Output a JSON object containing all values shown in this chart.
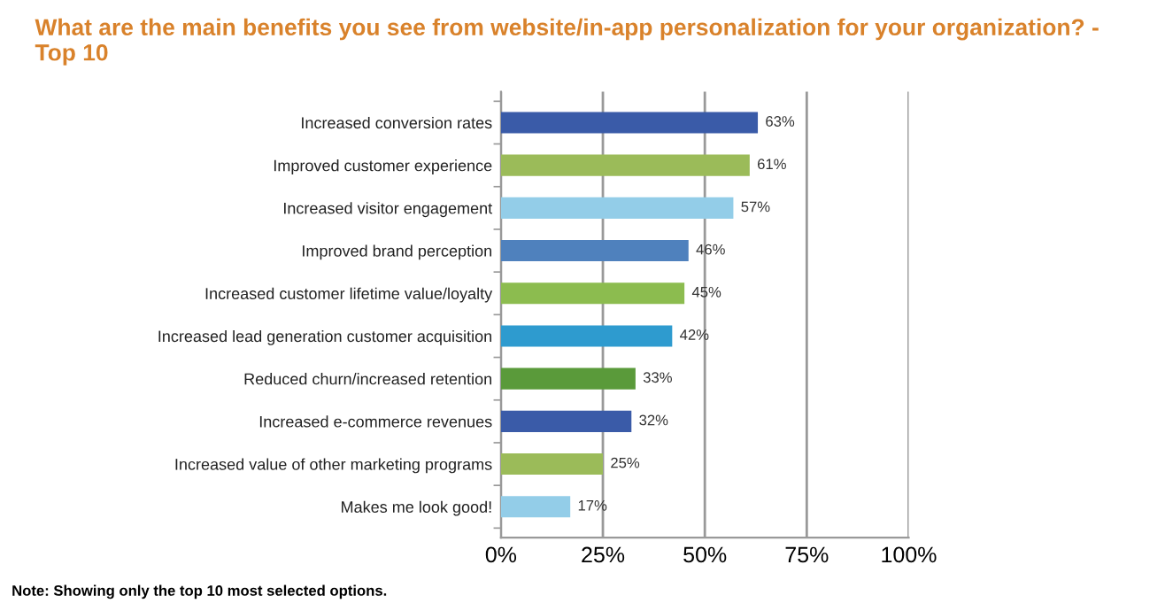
{
  "chart_data": {
    "type": "bar",
    "orientation": "horizontal",
    "title": "What are the main benefits you see from website/in-app personalization for your organization? -\nTop 10",
    "categories": [
      "Increased conversion rates",
      "Improved customer experience",
      "Increased visitor engagement",
      "Improved brand perception",
      "Increased customer lifetime value/loyalty",
      "Increased lead generation customer acquisition",
      "Reduced churn/increased retention",
      "Increased e-commerce revenues",
      "Increased value of other marketing programs",
      "Makes me look good!"
    ],
    "values": [
      63,
      61,
      57,
      46,
      45,
      42,
      33,
      32,
      25,
      17
    ],
    "value_labels": [
      "63%",
      "61%",
      "57%",
      "46%",
      "45%",
      "42%",
      "33%",
      "32%",
      "25%",
      "17%"
    ],
    "colors": [
      "#3a5ba8",
      "#9bbb59",
      "#93cde8",
      "#4f81bd",
      "#8cbc4f",
      "#2e9bcf",
      "#5a9a3a",
      "#3a5ba8",
      "#9bbb59",
      "#93cde8"
    ],
    "xlim": [
      0,
      100
    ],
    "xticks": [
      {
        "value": 0,
        "label": "0%"
      },
      {
        "value": 25,
        "label": "25%"
      },
      {
        "value": 50,
        "label": "50%"
      },
      {
        "value": 75,
        "label": "75%"
      },
      {
        "value": 100,
        "label": "100%"
      }
    ],
    "grid": "x",
    "annotations": [
      "Note: Showing only the top 10 most selected options."
    ]
  }
}
